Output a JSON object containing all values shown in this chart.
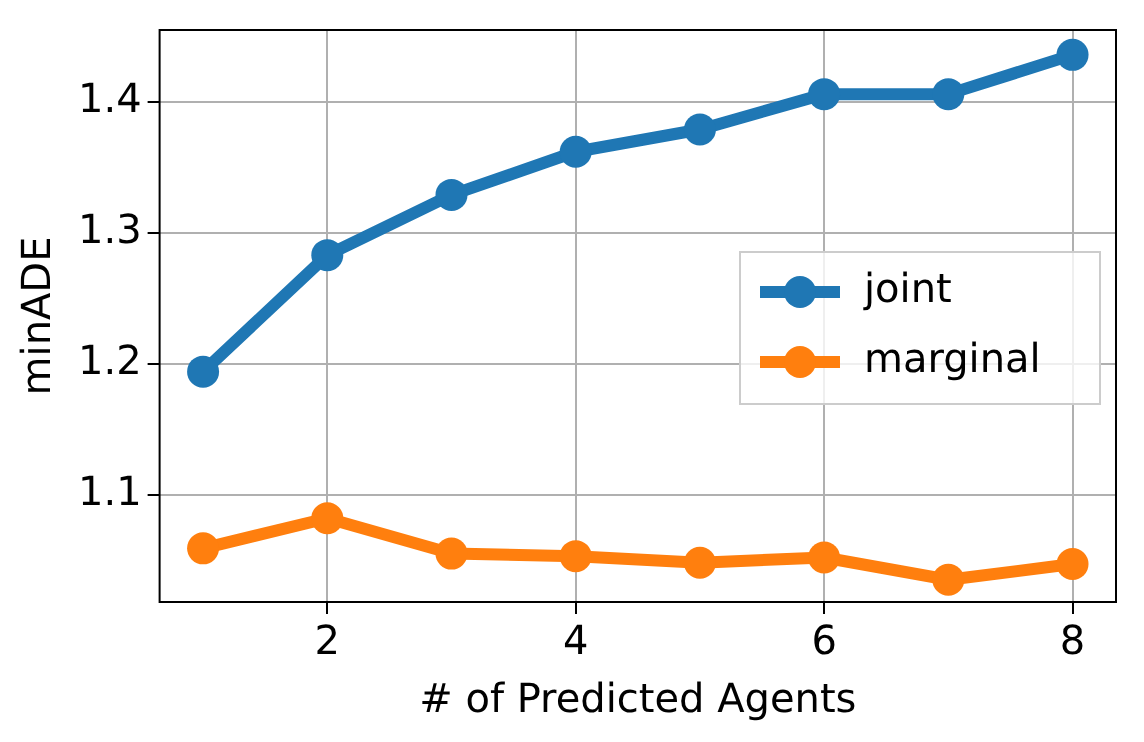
{
  "chart_data": {
    "type": "line",
    "xlabel": "# of Predicted Agents",
    "ylabel": "minADE",
    "x": [
      1,
      2,
      3,
      4,
      5,
      6,
      7,
      8
    ],
    "series": [
      {
        "name": "joint",
        "color": "#1f77b4",
        "values": [
          1.194,
          1.283,
          1.329,
          1.362,
          1.379,
          1.406,
          1.406,
          1.436
        ]
      },
      {
        "name": "marginal",
        "color": "#ff7f0e",
        "values": [
          1.059,
          1.082,
          1.055,
          1.053,
          1.048,
          1.052,
          1.035,
          1.047
        ]
      }
    ],
    "xlim": [
      0.65,
      8.35
    ],
    "xticks": [
      2,
      4,
      6,
      8
    ],
    "ylim": [
      1.018,
      1.455
    ],
    "yticks": [
      1.1,
      1.2,
      1.3,
      1.4
    ],
    "grid": true,
    "legend": "center right",
    "marker": "circle",
    "line_style": "solid"
  }
}
